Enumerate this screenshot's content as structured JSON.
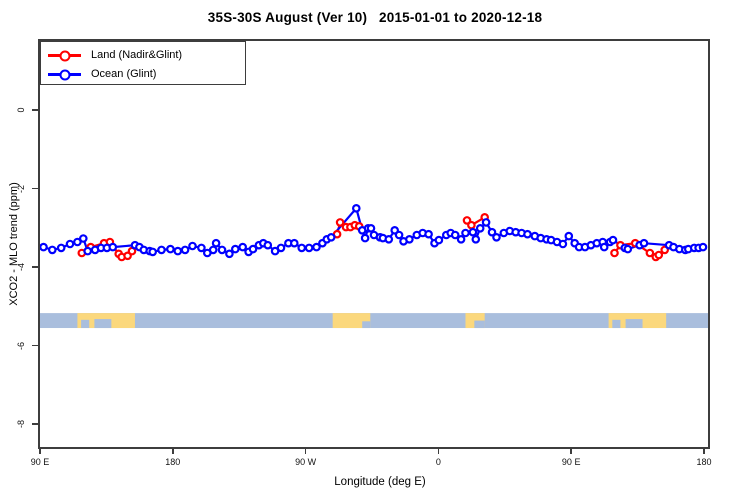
{
  "title": "35S-30S August (Ver 10)   2015-01-01 to 2020-12-18",
  "colors": {
    "land_series": "#ff0000",
    "ocean_series": "#0000ff",
    "axis": "#3d3d3d",
    "band_ocean": "#a9bedd",
    "band_land": "#fbd87d",
    "background": "#ffffff"
  },
  "chart_data": {
    "type": "line",
    "title": "35S-30S August (Ver 10)   2015-01-01 to 2020-12-18",
    "xlabel": "Longitude (deg E)",
    "ylabel": "XCO2 - MLO trend (ppm)",
    "grid": false,
    "legend_position": "top-left-inside-box",
    "x_axis": {
      "note": "longitude axis starts at 90 E, wraps eastward through 180, 90 W, 0, back to 180; deg = degrees east of the 90 E left edge",
      "span_deg": 450,
      "ticks": [
        {
          "label": "90 E",
          "deg": 0
        },
        {
          "label": "180",
          "deg": 90
        },
        {
          "label": "90 W",
          "deg": 180
        },
        {
          "label": "0",
          "deg": 270
        },
        {
          "label": "90 E",
          "deg": 360
        },
        {
          "label": "180",
          "deg": 450
        }
      ]
    },
    "y_axis": {
      "top_ppm": 1.81,
      "bottom_ppm": -8.53,
      "ticks": [
        {
          "label": "0",
          "ppm": 0
        },
        {
          "label": "-2",
          "ppm": -2
        },
        {
          "label": "-4",
          "ppm": -4
        },
        {
          "label": "-6",
          "ppm": -6
        },
        {
          "label": "-8",
          "ppm": -8
        }
      ]
    },
    "legend": [
      {
        "name": "Land (Nadir&Glint)",
        "color": "#ff0000"
      },
      {
        "name": "Ocean (Glint)",
        "color": "#0000ff"
      }
    ],
    "series": [
      {
        "name": "Land (Nadir&Glint)",
        "color": "#ff0000",
        "points": [
          [
            27,
            -3.59
          ],
          [
            33,
            -3.44
          ],
          [
            42,
            -3.34
          ],
          [
            46,
            -3.31
          ],
          [
            52,
            -3.61
          ],
          [
            54,
            -3.69
          ],
          [
            58,
            -3.66
          ],
          [
            61,
            -3.54
          ],
          [
            200,
            -3.11
          ],
          [
            202,
            -2.81
          ],
          [
            206,
            -2.93
          ],
          [
            209,
            -2.93
          ],
          [
            212,
            -2.88
          ],
          [
            215,
            -2.91
          ],
          [
            288,
            -2.76
          ],
          [
            291,
            -2.88
          ],
          [
            300,
            -2.68
          ],
          [
            388,
            -3.59
          ],
          [
            392,
            -3.39
          ],
          [
            402,
            -3.34
          ],
          [
            412,
            -3.59
          ],
          [
            416,
            -3.69
          ],
          [
            418,
            -3.64
          ],
          [
            422,
            -3.51
          ]
        ]
      },
      {
        "name": "Ocean (Glint)",
        "color": "#0000ff",
        "points": [
          [
            1,
            -3.44
          ],
          [
            7,
            -3.51
          ],
          [
            13,
            -3.46
          ],
          [
            19,
            -3.36
          ],
          [
            24,
            -3.31
          ],
          [
            28,
            -3.22
          ],
          [
            31,
            -3.54
          ],
          [
            36,
            -3.51
          ],
          [
            40,
            -3.46
          ],
          [
            44,
            -3.46
          ],
          [
            48,
            -3.44
          ],
          [
            63,
            -3.39
          ],
          [
            66,
            -3.44
          ],
          [
            69,
            -3.51
          ],
          [
            73,
            -3.54
          ],
          [
            75,
            -3.56
          ],
          [
            81,
            -3.51
          ],
          [
            87,
            -3.49
          ],
          [
            92,
            -3.54
          ],
          [
            97,
            -3.51
          ],
          [
            102,
            -3.41
          ],
          [
            108,
            -3.46
          ],
          [
            112,
            -3.59
          ],
          [
            116,
            -3.51
          ],
          [
            118,
            -3.34
          ],
          [
            122,
            -3.51
          ],
          [
            127,
            -3.61
          ],
          [
            131,
            -3.49
          ],
          [
            136,
            -3.44
          ],
          [
            140,
            -3.56
          ],
          [
            143,
            -3.49
          ],
          [
            147,
            -3.39
          ],
          [
            150,
            -3.34
          ],
          [
            153,
            -3.39
          ],
          [
            158,
            -3.54
          ],
          [
            162,
            -3.46
          ],
          [
            167,
            -3.34
          ],
          [
            171,
            -3.34
          ],
          [
            176,
            -3.46
          ],
          [
            181,
            -3.46
          ],
          [
            186,
            -3.44
          ],
          [
            190,
            -3.34
          ],
          [
            193,
            -3.24
          ],
          [
            196,
            -3.19
          ],
          [
            213,
            -2.45
          ],
          [
            217,
            -3.01
          ],
          [
            219,
            -3.21
          ],
          [
            221,
            -2.96
          ],
          [
            223,
            -2.96
          ],
          [
            225,
            -3.13
          ],
          [
            229,
            -3.19
          ],
          [
            231,
            -3.21
          ],
          [
            235,
            -3.24
          ],
          [
            239,
            -3.01
          ],
          [
            242,
            -3.13
          ],
          [
            245,
            -3.29
          ],
          [
            249,
            -3.24
          ],
          [
            254,
            -3.13
          ],
          [
            258,
            -3.08
          ],
          [
            262,
            -3.11
          ],
          [
            266,
            -3.34
          ],
          [
            269,
            -3.26
          ],
          [
            274,
            -3.13
          ],
          [
            277,
            -3.08
          ],
          [
            280,
            -3.13
          ],
          [
            284,
            -3.24
          ],
          [
            287,
            -3.08
          ],
          [
            292,
            -3.06
          ],
          [
            294,
            -3.24
          ],
          [
            297,
            -2.96
          ],
          [
            301,
            -2.81
          ],
          [
            305,
            -3.06
          ],
          [
            308,
            -3.19
          ],
          [
            313,
            -3.08
          ],
          [
            317,
            -3.03
          ],
          [
            321,
            -3.06
          ],
          [
            325,
            -3.08
          ],
          [
            329,
            -3.11
          ],
          [
            334,
            -3.16
          ],
          [
            338,
            -3.21
          ],
          [
            342,
            -3.24
          ],
          [
            345,
            -3.26
          ],
          [
            349,
            -3.31
          ],
          [
            353,
            -3.36
          ],
          [
            357,
            -3.16
          ],
          [
            361,
            -3.34
          ],
          [
            364,
            -3.44
          ],
          [
            368,
            -3.44
          ],
          [
            372,
            -3.39
          ],
          [
            376,
            -3.34
          ],
          [
            380,
            -3.31
          ],
          [
            381,
            -3.44
          ],
          [
            385,
            -3.31
          ],
          [
            387,
            -3.26
          ],
          [
            395,
            -3.46
          ],
          [
            397,
            -3.49
          ],
          [
            405,
            -3.39
          ],
          [
            408,
            -3.34
          ],
          [
            425,
            -3.39
          ],
          [
            428,
            -3.44
          ],
          [
            432,
            -3.49
          ],
          [
            436,
            -3.51
          ],
          [
            438,
            -3.49
          ],
          [
            442,
            -3.46
          ],
          [
            445,
            -3.46
          ],
          [
            448,
            -3.44
          ]
        ]
      }
    ],
    "map_band": {
      "description": "land/ocean strip for the 35S-30S latitude band",
      "ppm_top": -5.12,
      "ppm_bottom": -5.5,
      "ocean_color": "#a9bedd",
      "land_color": "#fbd87d",
      "land_patches": [
        {
          "from_deg": 24,
          "to_deg": 63,
          "notches": [
            {
              "from_deg": 26.5,
              "to_deg": 32,
              "depth_frac": 0.55
            },
            {
              "from_deg": 35.5,
              "to_deg": 47,
              "depth_frac": 0.6
            }
          ]
        },
        {
          "from_deg": 197,
          "to_deg": 222.5,
          "notches": [
            {
              "from_deg": 217,
              "to_deg": 222.5,
              "depth_frac": 0.45
            }
          ]
        },
        {
          "from_deg": 287,
          "to_deg": 300,
          "notches": [
            {
              "from_deg": 293,
              "to_deg": 300,
              "depth_frac": 0.5
            }
          ]
        },
        {
          "from_deg": 384,
          "to_deg": 423,
          "notches": [
            {
              "from_deg": 386.5,
              "to_deg": 392,
              "depth_frac": 0.55
            },
            {
              "from_deg": 395.5,
              "to_deg": 407,
              "depth_frac": 0.6
            }
          ]
        }
      ]
    }
  }
}
